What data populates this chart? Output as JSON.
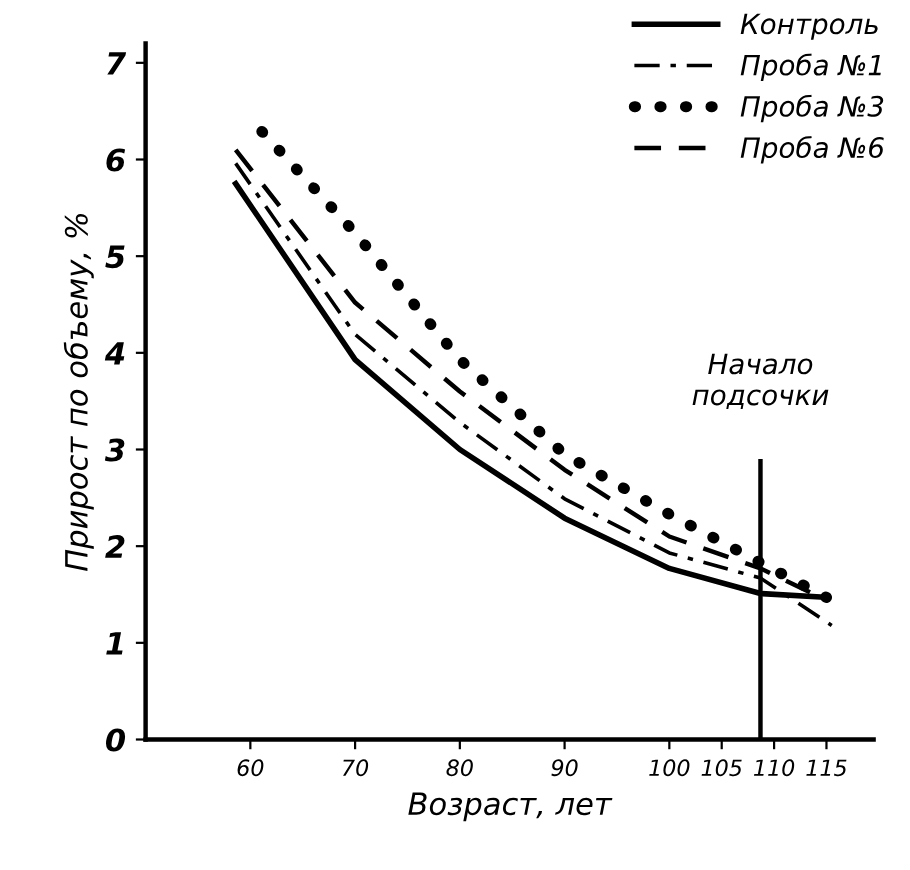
{
  "chart_data": {
    "type": "line",
    "xlabel": "Возраст, лет",
    "ylabel": "Прирост по объему, %",
    "xlim": [
      50,
      119.5
    ],
    "ylim": [
      0,
      7.2
    ],
    "xticks": [
      60,
      70,
      80,
      90,
      100,
      105,
      110,
      115
    ],
    "yticks": [
      0,
      1,
      2,
      3,
      4,
      5,
      6,
      7
    ],
    "legend": "top right",
    "grid": false,
    "ref_lines": [
      {
        "axis": "x",
        "value": 108.7,
        "label": "Начало\nподсочки",
        "color": "#000000"
      }
    ],
    "series": [
      {
        "name": "Контроль",
        "color": "#000000",
        "line_style": "solid",
        "x": [
          58.6,
          70,
          80,
          90,
          100,
          108.7,
          115
        ],
        "values": [
          5.75,
          3.93,
          3.0,
          2.29,
          1.77,
          1.51,
          1.47
        ]
      },
      {
        "name": "Проба №1",
        "color": "#000000",
        "line_style": "dashdot",
        "x": [
          58.6,
          70,
          80,
          90,
          100,
          108.7,
          115.5
        ],
        "values": [
          5.96,
          4.19,
          3.28,
          2.49,
          1.93,
          1.67,
          1.18
        ]
      },
      {
        "name": "Проба №3",
        "color": "#000000",
        "line_style": "dotted",
        "x": [
          61.1,
          70,
          80,
          90,
          100,
          108.7,
          115
        ],
        "values": [
          6.29,
          5.24,
          3.93,
          2.95,
          2.33,
          1.83,
          1.47
        ]
      },
      {
        "name": "Проба №6",
        "color": "#000000",
        "line_style": "dashed",
        "x": [
          58.6,
          70,
          80,
          90,
          100,
          108.7,
          115
        ],
        "values": [
          6.1,
          4.52,
          3.6,
          2.79,
          2.1,
          1.77,
          1.44
        ]
      }
    ]
  }
}
